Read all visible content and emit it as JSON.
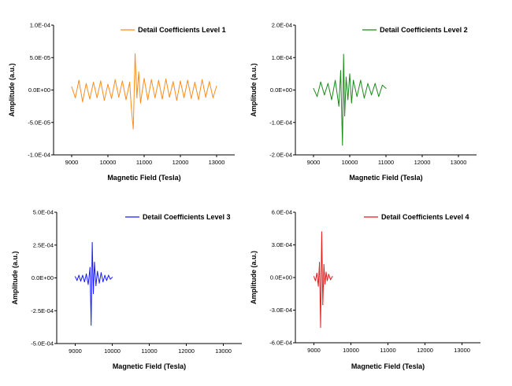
{
  "chart_data": [
    {
      "type": "line",
      "xlabel": "Magnetic Field (Tesla)",
      "ylabel": "Amplitude (a.u.)",
      "xlim": [
        8500,
        13500
      ],
      "xticks": [
        9000,
        10000,
        11000,
        12000,
        13000
      ],
      "ylim": [
        -0.0001,
        0.0001
      ],
      "yticks": [
        -0.0001,
        -5e-05,
        0,
        5e-05,
        0.0001
      ],
      "ytick_labels": [
        "-1.0E-04",
        "-5.0E-05",
        "0.0E+00",
        "5.0E-05",
        "1.0E-04"
      ],
      "legend_position": "top-right",
      "grid": false,
      "series": [
        {
          "name": "Detail Coefficients Level 1",
          "color": "#ff8c1a",
          "x": [
            9000,
            9100,
            9200,
            9300,
            9400,
            9500,
            9600,
            9700,
            9800,
            9900,
            10000,
            10100,
            10200,
            10300,
            10400,
            10500,
            10600,
            10650,
            10700,
            10750,
            10800,
            10850,
            10900,
            11000,
            11100,
            11200,
            11300,
            11400,
            11500,
            11600,
            11700,
            11800,
            11900,
            12000,
            12100,
            12200,
            12300,
            12400,
            12500,
            12600,
            12700,
            12800,
            12900,
            13000
          ],
          "values": [
            5e-06,
            -1.2e-05,
            1.5e-05,
            -1.8e-05,
            1e-05,
            -1.4e-05,
            1.2e-05,
            -1.2e-05,
            1.4e-05,
            -1.6e-05,
            9e-06,
            -1.3e-05,
            1.6e-05,
            -1.1e-05,
            1.4e-05,
            -1.5e-05,
            1.2e-05,
            -3e-05,
            -6e-05,
            5.6e-05,
            -1.2e-05,
            2.8e-05,
            -2e-05,
            1.8e-05,
            -1.5e-05,
            1.6e-05,
            -1.2e-05,
            1.5e-05,
            -1.4e-05,
            1.7e-05,
            -1.1e-05,
            1.3e-05,
            -1.6e-05,
            1.4e-05,
            -1.2e-05,
            1.5e-05,
            -1.3e-05,
            1.2e-05,
            -1.5e-05,
            1.6e-05,
            -1.1e-05,
            1.3e-05,
            -1.2e-05,
            6e-06
          ]
        }
      ]
    },
    {
      "type": "line",
      "xlabel": "Magnetic Field (Tesla)",
      "ylabel": "Amplitude (a.u.)",
      "xlim": [
        8500,
        13500
      ],
      "xticks": [
        9000,
        10000,
        11000,
        12000,
        13000
      ],
      "ylim": [
        -0.0002,
        0.0002
      ],
      "yticks": [
        -0.0002,
        -0.0001,
        0,
        0.0001,
        0.0002
      ],
      "ytick_labels": [
        "-2.0E-04",
        "-1.0E-04",
        "0.0E+00",
        "1.0E-04",
        "2.0E-04"
      ],
      "legend_position": "top-right",
      "grid": false,
      "series": [
        {
          "name": "Detail Coefficients Level 2",
          "color": "#1a8a1a",
          "x": [
            9000,
            9100,
            9200,
            9300,
            9400,
            9500,
            9600,
            9700,
            9750,
            9800,
            9830,
            9860,
            9900,
            9950,
            10000,
            10050,
            10100,
            10200,
            10300,
            10400,
            10500,
            10600,
            10700,
            10800,
            10900,
            11000
          ],
          "values": [
            5e-06,
            -2e-05,
            2.5e-05,
            -1.5e-05,
            2e-05,
            -3e-05,
            3e-05,
            -5e-05,
            6e-05,
            -0.00017,
            0.00011,
            -8e-05,
            4e-05,
            -3e-05,
            5e-05,
            -4e-05,
            3e-05,
            -2e-05,
            3e-05,
            -2.5e-05,
            2e-05,
            -1.5e-05,
            2e-05,
            -2e-05,
            1.5e-05,
            5e-06
          ]
        }
      ]
    },
    {
      "type": "line",
      "xlabel": "Magnetic Field (Tesla)",
      "ylabel": "Amplitude (a.u.)",
      "xlim": [
        8500,
        13500
      ],
      "xticks": [
        9000,
        10000,
        11000,
        12000,
        13000
      ],
      "ylim": [
        -0.0005,
        0.0005
      ],
      "yticks": [
        -0.0005,
        -0.00025,
        0,
        0.00025,
        0.0005
      ],
      "ytick_labels": [
        "-5.0E-04",
        "-2.5E-04",
        "0.0E+00",
        "2.5E-04",
        "5.0E-04"
      ],
      "legend_position": "top-right",
      "grid": false,
      "series": [
        {
          "name": "Detail Coefficients Level 3",
          "color": "#1a1aff",
          "x": [
            9000,
            9050,
            9100,
            9150,
            9200,
            9250,
            9300,
            9350,
            9400,
            9430,
            9460,
            9490,
            9520,
            9560,
            9600,
            9650,
            9700,
            9750,
            9800,
            9850,
            9900,
            9950,
            10000
          ],
          "values": [
            1e-05,
            -2e-05,
            2e-05,
            -2.5e-05,
            2e-05,
            -3e-05,
            3e-05,
            -5e-05,
            8e-05,
            -0.00036,
            0.00027,
            -0.00012,
            0.00012,
            -6e-05,
            5e-05,
            -4e-05,
            4e-05,
            -3e-05,
            2e-05,
            -2e-05,
            2e-05,
            -1e-05,
            5e-06
          ]
        }
      ]
    },
    {
      "type": "line",
      "xlabel": "Magnetic Field (Tesla)",
      "ylabel": "Amplitude (a.u.)",
      "xlim": [
        8500,
        13500
      ],
      "xticks": [
        9000,
        10000,
        11000,
        12000,
        13000
      ],
      "ylim": [
        -0.0006,
        0.0006
      ],
      "yticks": [
        -0.0006,
        -0.0003,
        0,
        0.0003,
        0.0006
      ],
      "ytick_labels": [
        "-6.0E-04",
        "-3.0E-04",
        "0.0E+00",
        "3.0E-04",
        "6.0E-04"
      ],
      "legend_position": "top-right",
      "grid": false,
      "series": [
        {
          "name": "Detail Coefficients Level 4",
          "color": "#e81a1a",
          "x": [
            9000,
            9040,
            9080,
            9120,
            9150,
            9180,
            9210,
            9240,
            9270,
            9300,
            9330,
            9360,
            9400,
            9450,
            9500
          ],
          "values": [
            1e-05,
            -3e-05,
            4e-05,
            -8e-05,
            0.00014,
            -0.00046,
            0.00042,
            -0.00025,
            0.00012,
            -6e-05,
            5e-05,
            -3e-05,
            3e-05,
            -2e-05,
            1e-05
          ]
        }
      ]
    }
  ]
}
